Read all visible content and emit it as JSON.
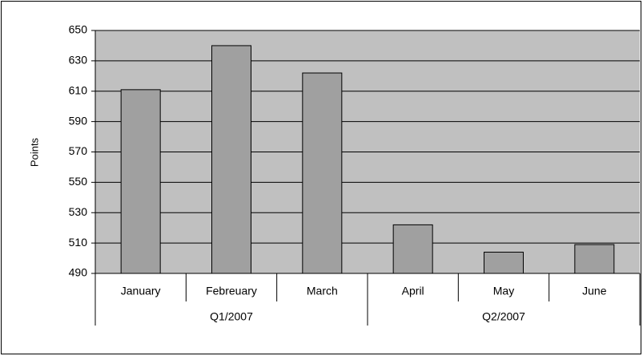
{
  "chart_data": {
    "type": "bar",
    "y_label": "Points",
    "groups": [
      {
        "name": "Q1/2007",
        "categories": [
          "January",
          "Febreuary",
          "March"
        ]
      },
      {
        "name": "Q2/2007",
        "categories": [
          "April",
          "May",
          "June"
        ]
      }
    ],
    "values": [
      611,
      640,
      622,
      522,
      504,
      509
    ],
    "color": "#a0a0a0",
    "plot_background": "#c0c0c0",
    "ylim": [
      490,
      650
    ],
    "yticks": [
      490,
      510,
      530,
      550,
      570,
      590,
      610,
      630,
      650
    ],
    "grid": true
  }
}
